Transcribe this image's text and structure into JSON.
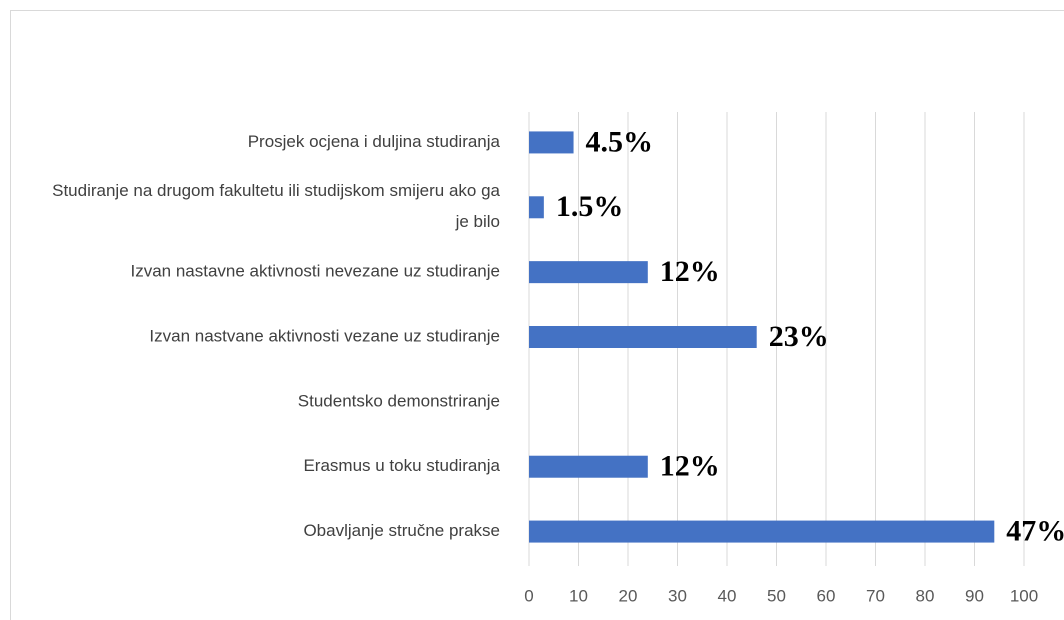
{
  "chart_data": {
    "type": "bar",
    "orientation": "horizontal",
    "categories": [
      "Prosjek ocjena i duljina studiranja",
      "Studiranje na drugom fakultetu ili studijskom smijeru ako ga je bilo",
      "Izvan nastavne aktivnosti nevezane uz studiranje",
      "Izvan nastvane aktivnosti vezane uz studiranje",
      "Studentsko demonstriranje",
      "Erasmus u toku studiranja",
      "Obavljanje stručne prakse"
    ],
    "values": [
      9,
      3,
      24,
      46,
      0,
      24,
      94
    ],
    "value_labels": [
      "4.5%",
      "1.5%",
      "12%",
      "23%",
      null,
      "12%",
      "47%"
    ],
    "color": "#4472c4",
    "xlim": [
      0,
      100
    ],
    "xticks": [
      0,
      10,
      20,
      30,
      40,
      50,
      60,
      70,
      80,
      90,
      100
    ],
    "grid": true
  }
}
